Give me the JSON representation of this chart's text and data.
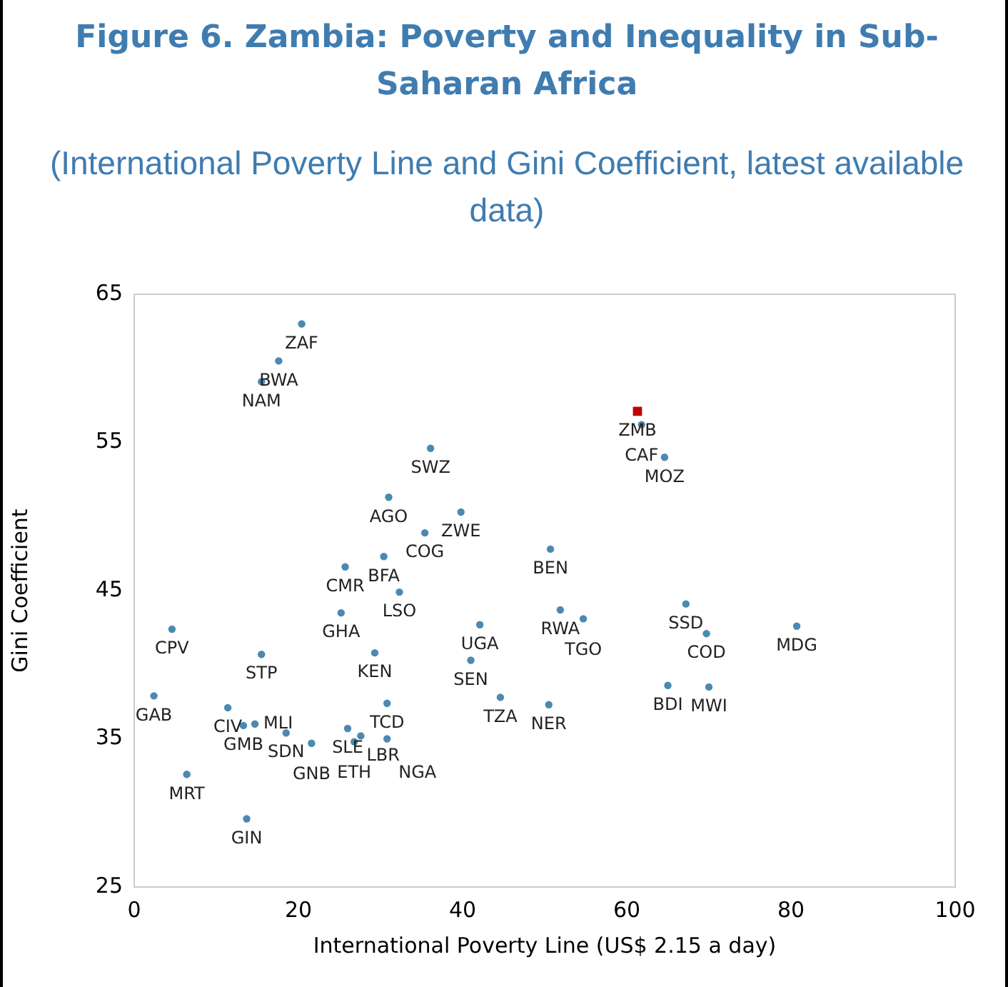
{
  "chart_data": {
    "type": "scatter",
    "title": "Figure 6. Zambia: Poverty and Inequality in Sub-Saharan Africa",
    "subtitle": "(International Poverty Line and Gini Coefficient, latest available data)",
    "xlabel": "International Poverty Line (US$ 2.15 a day)",
    "ylabel": "Gini Coefficient",
    "xlim": [
      0,
      100
    ],
    "xticks": [
      0,
      20,
      40,
      60,
      80,
      100
    ],
    "ylim": [
      25,
      65
    ],
    "yticks": [
      25,
      35,
      45,
      55,
      65
    ],
    "grid": false,
    "legend": false,
    "marker": "circle",
    "series": [
      {
        "color": "#4a8ab0",
        "x": [
          20.4,
          17.6,
          15.5,
          31.0,
          30.4,
          25.7,
          32.3,
          25.2,
          4.6,
          15.5,
          29.3,
          2.4,
          11.4,
          30.8,
          13.3,
          14.7,
          18.5,
          21.6,
          26.0,
          26.8,
          27.6,
          30.8,
          6.4,
          13.7,
          36.1,
          39.8,
          35.4,
          50.7,
          51.9,
          54.7,
          42.1,
          41.0,
          44.6,
          50.5,
          61.8,
          64.6,
          67.2,
          69.7,
          65.0,
          70.0,
          80.7
        ],
        "values": [
          63.0,
          60.5,
          59.1,
          51.3,
          47.3,
          46.6,
          44.9,
          43.5,
          42.4,
          40.7,
          40.8,
          37.9,
          37.1,
          37.4,
          35.9,
          36.0,
          35.4,
          34.7,
          35.7,
          34.8,
          35.2,
          35.0,
          32.6,
          29.6,
          54.6,
          50.3,
          48.9,
          47.8,
          43.7,
          43.1,
          42.7,
          40.3,
          37.8,
          37.3,
          56.2,
          54.0,
          44.1,
          42.1,
          38.6,
          38.5,
          42.6
        ]
      },
      {
        "color": "#c00000",
        "marker": "square",
        "x": [
          61.3
        ],
        "values": [
          57.1
        ]
      }
    ],
    "annotations": [
      {
        "text": "ZAF",
        "x": 20.4,
        "y": 63.0
      },
      {
        "text": "BWA",
        "x": 17.6,
        "y": 60.5
      },
      {
        "text": "NAM",
        "x": 15.5,
        "y": 59.1
      },
      {
        "text": "AGO",
        "x": 31.0,
        "y": 51.3
      },
      {
        "text": "BFA",
        "x": 30.4,
        "y": 47.3
      },
      {
        "text": "CMR",
        "x": 25.7,
        "y": 46.6
      },
      {
        "text": "LSO",
        "x": 32.3,
        "y": 44.9
      },
      {
        "text": "GHA",
        "x": 25.2,
        "y": 43.5
      },
      {
        "text": "CPV",
        "x": 4.6,
        "y": 42.4
      },
      {
        "text": "STP",
        "x": 15.5,
        "y": 40.7
      },
      {
        "text": "KEN",
        "x": 29.3,
        "y": 40.8
      },
      {
        "text": "GAB",
        "x": 2.4,
        "y": 37.9
      },
      {
        "text": "CIV",
        "x": 11.4,
        "y": 37.1
      },
      {
        "text": "TCD",
        "x": 30.8,
        "y": 37.4
      },
      {
        "text": "GMB",
        "x": 13.3,
        "y": 35.9
      },
      {
        "text": "MLI",
        "x": 14.7,
        "y": 36.0
      },
      {
        "text": "SDN",
        "x": 18.5,
        "y": 35.4
      },
      {
        "text": "GNB",
        "x": 21.6,
        "y": 34.7
      },
      {
        "text": "SLE",
        "x": 26.0,
        "y": 35.7
      },
      {
        "text": "ETH",
        "x": 26.8,
        "y": 34.8
      },
      {
        "text": "LBR",
        "x": 27.6,
        "y": 35.2
      },
      {
        "text": "NGA",
        "x": 30.8,
        "y": 35.0
      },
      {
        "text": "MRT",
        "x": 6.4,
        "y": 32.6
      },
      {
        "text": "GIN",
        "x": 13.7,
        "y": 29.6
      },
      {
        "text": "SWZ",
        "x": 36.1,
        "y": 54.6
      },
      {
        "text": "ZWE",
        "x": 39.8,
        "y": 50.3
      },
      {
        "text": "COG",
        "x": 35.4,
        "y": 48.9
      },
      {
        "text": "BEN",
        "x": 50.7,
        "y": 47.8
      },
      {
        "text": "RWA",
        "x": 51.9,
        "y": 43.7
      },
      {
        "text": "TGO",
        "x": 54.7,
        "y": 43.1
      },
      {
        "text": "UGA",
        "x": 42.1,
        "y": 42.7
      },
      {
        "text": "SEN",
        "x": 41.0,
        "y": 40.3
      },
      {
        "text": "TZA",
        "x": 44.6,
        "y": 37.8
      },
      {
        "text": "NER",
        "x": 50.5,
        "y": 37.3
      },
      {
        "text": "ZMB",
        "x": 61.3,
        "y": 57.1
      },
      {
        "text": "CAF",
        "x": 61.8,
        "y": 56.2
      },
      {
        "text": "MOZ",
        "x": 64.6,
        "y": 54.0
      },
      {
        "text": "SSD",
        "x": 67.2,
        "y": 44.1
      },
      {
        "text": "COD",
        "x": 69.7,
        "y": 42.1
      },
      {
        "text": "BDI",
        "x": 65.0,
        "y": 38.6
      },
      {
        "text": "MWI",
        "x": 70.0,
        "y": 38.5
      },
      {
        "text": "MDG",
        "x": 80.7,
        "y": 42.6
      }
    ]
  }
}
